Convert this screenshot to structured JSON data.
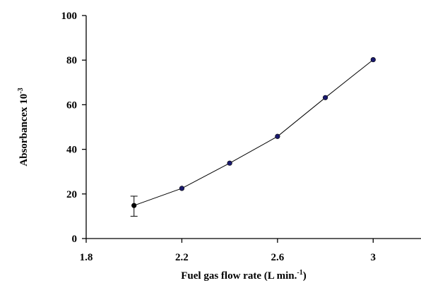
{
  "chart_data": {
    "type": "line",
    "title": "",
    "xlabel": "Fuel gas flow rate (L min.",
    "xlabel_sup": "-1",
    "xlabel_tail": ")",
    "ylabel": "Absorbancex 10",
    "ylabel_sup": "-3",
    "xlim": [
      1.8,
      3.2
    ],
    "ylim": [
      0,
      100
    ],
    "xticks": [
      1.8,
      2.2,
      2.6,
      3
    ],
    "xtick_labels": [
      "1.8",
      "2.2",
      "2.6",
      "3"
    ],
    "yticks": [
      0,
      20,
      40,
      60,
      80,
      100
    ],
    "ytick_labels": [
      "0",
      "20",
      "40",
      "60",
      "80",
      "100"
    ],
    "grid": false,
    "series": [
      {
        "x": [
          2.0,
          2.2,
          2.4,
          2.6,
          2.8,
          3.0
        ],
        "y": [
          14.8,
          22.5,
          33.8,
          45.8,
          63.2,
          80.2
        ],
        "marker_colors": [
          "#000000",
          "#1a1a6e",
          "#1a1a6e",
          "#1a1a6e",
          "#1a1a6e",
          "#1a1a6e"
        ],
        "error_bars": [
          {
            "x": 2.0,
            "low": 10.0,
            "high": 19.0
          }
        ]
      }
    ]
  }
}
